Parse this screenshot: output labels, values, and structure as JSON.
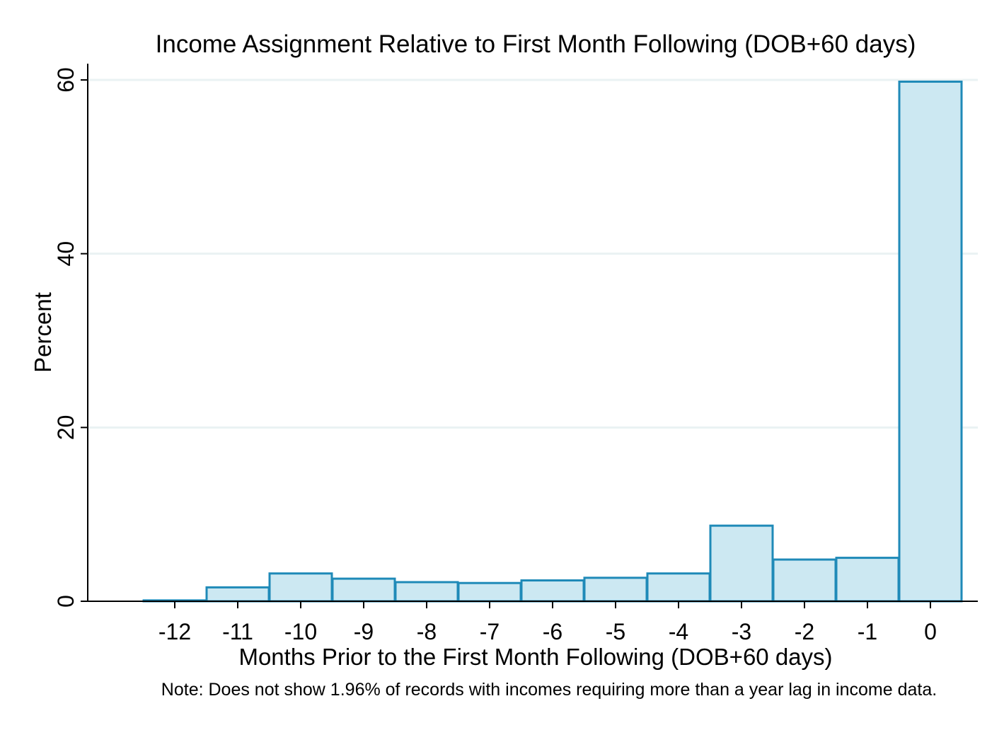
{
  "chart_data": {
    "type": "bar",
    "title": "Income Assignment Relative to First Month Following (DOB+60 days)",
    "xlabel": "Months Prior to the First Month Following (DOB+60 days)",
    "ylabel": "Percent",
    "note": "Note: Does not show 1.96% of records with incomes requiring more than a year lag in income data.",
    "categories": [
      "-12",
      "-11",
      "-10",
      "-9",
      "-8",
      "-7",
      "-6",
      "-5",
      "-4",
      "-3",
      "-2",
      "-1",
      "0"
    ],
    "x": [
      -12,
      -11,
      -10,
      -9,
      -8,
      -7,
      -6,
      -5,
      -4,
      -3,
      -2,
      -1,
      0
    ],
    "values": [
      0.1,
      1.6,
      3.2,
      2.6,
      2.2,
      2.1,
      2.4,
      2.7,
      3.2,
      8.7,
      4.8,
      5.0,
      59.8
    ],
    "ylim": [
      0,
      60
    ],
    "yticks": [
      0,
      20,
      40,
      60
    ],
    "grid": true,
    "bar_fill": "#cce8f2",
    "bar_stroke": "#1f8ab8"
  }
}
